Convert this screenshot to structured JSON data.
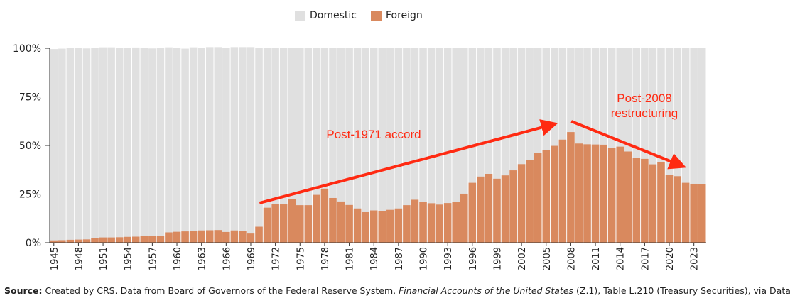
{
  "chart_data": {
    "type": "bar",
    "stacked": true,
    "title": "",
    "xlabel": "",
    "ylabel": "",
    "ylim": [
      0,
      100
    ],
    "yticks": [
      "0%",
      "25%",
      "50%",
      "75%",
      "100%"
    ],
    "years": [
      1945,
      1946,
      1947,
      1948,
      1949,
      1950,
      1951,
      1952,
      1953,
      1954,
      1955,
      1956,
      1957,
      1958,
      1959,
      1960,
      1961,
      1962,
      1963,
      1964,
      1965,
      1966,
      1967,
      1968,
      1969,
      1970,
      1971,
      1972,
      1973,
      1974,
      1975,
      1976,
      1977,
      1978,
      1979,
      1980,
      1981,
      1982,
      1983,
      1984,
      1985,
      1986,
      1987,
      1988,
      1989,
      1990,
      1991,
      1992,
      1993,
      1994,
      1995,
      1996,
      1997,
      1998,
      1999,
      2000,
      2001,
      2002,
      2003,
      2004,
      2005,
      2006,
      2007,
      2008,
      2009,
      2010,
      2011,
      2012,
      2013,
      2014,
      2015,
      2016,
      2017,
      2018,
      2019,
      2020,
      2021,
      2022,
      2023,
      2024
    ],
    "x_tick_labels": [
      "1945",
      "1948",
      "1951",
      "1954",
      "1957",
      "1960",
      "1963",
      "1966",
      "1969",
      "1972",
      "1975",
      "1978",
      "1981",
      "1984",
      "1987",
      "1990",
      "1993",
      "1996",
      "1999",
      "2002",
      "2005",
      "2008",
      "2011",
      "2014",
      "2017",
      "2020",
      "2023"
    ],
    "series": [
      {
        "name": "Foreign",
        "color": "#d9895e",
        "values": [
          1.2,
          1.3,
          1.5,
          1.6,
          1.7,
          2.5,
          2.7,
          2.7,
          2.8,
          3.0,
          3.1,
          3.3,
          3.4,
          3.4,
          5.3,
          5.6,
          5.8,
          6.2,
          6.3,
          6.4,
          6.5,
          5.5,
          6.3,
          5.9,
          4.7,
          8.2,
          18.0,
          20.0,
          19.7,
          22.3,
          19.3,
          19.3,
          24.6,
          27.8,
          23.0,
          21.2,
          19.4,
          17.6,
          15.7,
          16.6,
          16.1,
          16.9,
          17.6,
          19.3,
          22.1,
          21.0,
          20.3,
          19.6,
          20.4,
          20.8,
          25.2,
          30.8,
          34.0,
          35.4,
          32.9,
          34.6,
          37.2,
          40.4,
          42.5,
          46.3,
          47.8,
          49.8,
          53.0,
          56.9,
          51.0,
          50.6,
          50.5,
          50.4,
          48.8,
          49.4,
          46.9,
          43.5,
          43.1,
          40.3,
          41.6,
          34.9,
          34.2,
          30.8,
          30.3,
          30.2
        ]
      },
      {
        "name": "Domestic",
        "color": "#e0e0e0",
        "values_note": "remainder to 100% (some years slightly above 100% due to data rounding)",
        "totals": [
          99.6,
          99.8,
          100.3,
          100.0,
          99.9,
          100.0,
          100.5,
          100.5,
          100.1,
          100.0,
          100.4,
          100.2,
          99.9,
          100.0,
          100.5,
          100.1,
          99.8,
          100.5,
          100.1,
          100.6,
          100.6,
          100.2,
          100.6,
          100.6,
          100.6,
          100,
          100,
          100,
          100,
          100,
          100,
          100,
          100,
          100,
          100,
          100,
          100,
          100,
          100,
          100,
          100,
          100,
          100,
          100,
          100,
          100,
          100,
          100,
          100,
          100,
          100,
          100,
          100,
          100,
          100,
          100,
          100,
          100,
          100,
          100,
          100,
          100,
          100,
          100,
          100,
          100,
          100,
          100,
          100,
          100,
          100,
          100,
          100,
          100,
          100,
          100,
          100,
          100,
          100,
          100
        ]
      }
    ],
    "legend": [
      "Domestic",
      "Foreign"
    ],
    "legend_position": "top-center",
    "annotations": [
      {
        "text": "Post-1971 accord",
        "from_year": 1971,
        "to_year": 2008
      },
      {
        "text_lines": [
          "Post-2008",
          "restructuring"
        ],
        "from_year": 2009,
        "to_year": 2024
      }
    ],
    "annotation_color": "#ff2a12"
  },
  "source": {
    "label": "Source:",
    "text_before": " Created by CRS. Data from Board of Governors of the Federal Reserve System, ",
    "italic": "Financial Accounts of the United States",
    "text_after": " (Z.1), Table L.210 (Treasury Securities), via Data"
  }
}
